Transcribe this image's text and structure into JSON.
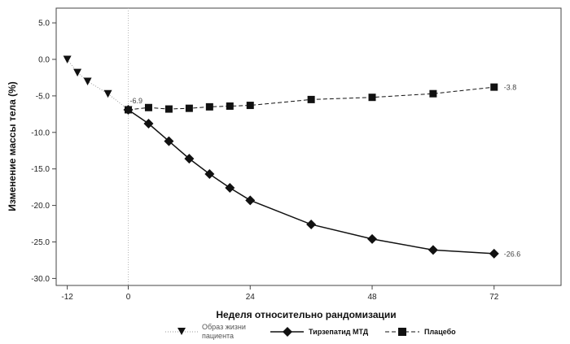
{
  "chart_data": {
    "type": "line",
    "xlabel": "Неделя относительно рандомизации",
    "ylabel": "Изменение массы тела (%)",
    "xlim": [
      -14,
      77
    ],
    "ylim": [
      -31,
      6
    ],
    "x_ticks": [
      -12,
      0,
      24,
      48,
      72
    ],
    "x_tick_labels": [
      "-12",
      "0",
      "24",
      "48",
      "72"
    ],
    "y_ticks": [
      5,
      0,
      -5,
      -10,
      -15,
      -20,
      -25,
      -30
    ],
    "y_tick_labels": [
      "5.0",
      "0.0",
      "-5.0",
      "-10.0",
      "-15.0",
      "-20.0",
      "-25.0",
      "-30.0"
    ],
    "grid": false,
    "legend_position": "bottom",
    "reference_line_x": 0,
    "series": [
      {
        "name": "Образ жизни пациента",
        "legend_lines": [
          "Образ жизни",
          "пациента"
        ],
        "marker": "triangle-down",
        "line_style": "dotted",
        "color": "#222222",
        "x": [
          -12,
          -10,
          -8,
          -4,
          0
        ],
        "y": [
          0.0,
          -1.8,
          -3.0,
          -4.7,
          -6.9
        ]
      },
      {
        "name": "Тирзепатид МТД",
        "marker": "diamond",
        "line_style": "solid",
        "color": "#111111",
        "x": [
          0,
          4,
          8,
          12,
          16,
          20,
          24,
          36,
          48,
          60,
          72
        ],
        "y": [
          -6.9,
          -8.8,
          -11.2,
          -13.6,
          -15.7,
          -17.6,
          -19.3,
          -22.6,
          -24.6,
          -26.1,
          -26.6
        ]
      },
      {
        "name": "Плацебо",
        "marker": "square",
        "line_style": "dashed",
        "color": "#111111",
        "x": [
          0,
          4,
          8,
          12,
          16,
          20,
          24,
          36,
          48,
          60,
          72
        ],
        "y": [
          -6.9,
          -6.6,
          -6.8,
          -6.7,
          -6.5,
          -6.4,
          -6.3,
          -5.5,
          -5.2,
          -4.7,
          -3.8
        ]
      }
    ],
    "annotations": [
      {
        "text": "-6.9",
        "x": 0,
        "y": -6.9
      },
      {
        "text": "-3.8",
        "x": 72,
        "y": -3.8
      },
      {
        "text": "-26.6",
        "x": 72,
        "y": -26.6
      }
    ]
  }
}
